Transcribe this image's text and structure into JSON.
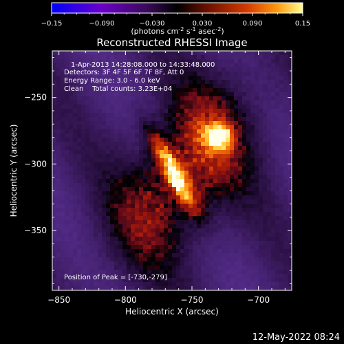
{
  "colorbar": {
    "ticks": [
      "-0.15",
      "-0.090",
      "-0.030",
      "0.030",
      "0.090",
      "0.15"
    ],
    "units_text": "(photons cm",
    "units_sup1": "-2",
    "units_mid1": " s",
    "units_sup2": "-1",
    "units_mid2": " asec",
    "units_sup3": "-2",
    "units_end": ")",
    "colors": [
      "#0000ff",
      "#7a00b8",
      "#3a0a5a",
      "#000000",
      "#7a1400",
      "#d43c00",
      "#ff9a10",
      "#ffff90"
    ]
  },
  "info": {
    "time_range": "1-Apr-2013 14:28:08.000 to 14:33:48.000",
    "detectors": "Detectors: 3F 4F 5F 6F 7F 8F, Att 0",
    "energy": "Energy Range: 3.0 - 6.0 keV",
    "clean": "Clean    Total counts: 3.23E+04",
    "peak": "Position of Peak = [-730,-279]"
  },
  "footer": {
    "date": "12-May-2022 08:24"
  },
  "chart_data": {
    "type": "heatmap",
    "title": "Reconstructed RHESSI Image",
    "xlabel": "Heliocentric X (arcsec)",
    "ylabel": "Heliocentric Y (arcsec)",
    "xlim": [
      -855,
      -675
    ],
    "ylim": [
      -395,
      -215
    ],
    "x_ticks": [
      -850,
      -800,
      -750,
      -700
    ],
    "y_ticks": [
      -250,
      -300,
      -350
    ],
    "x_tick_labels": [
      "−850",
      "−800",
      "−750",
      "−700"
    ],
    "y_tick_labels": [
      "−250",
      "−300",
      "−350"
    ],
    "colorbar_range": [
      -0.15,
      0.15
    ],
    "peak_position": [
      -730,
      -279
    ],
    "sources": [
      {
        "x": -730,
        "y": -279,
        "intensity": 0.15
      },
      {
        "x": -758,
        "y": -318,
        "intensity": 0.11
      },
      {
        "x": -772,
        "y": -290,
        "intensity": 0.09
      }
    ],
    "grid": false
  }
}
